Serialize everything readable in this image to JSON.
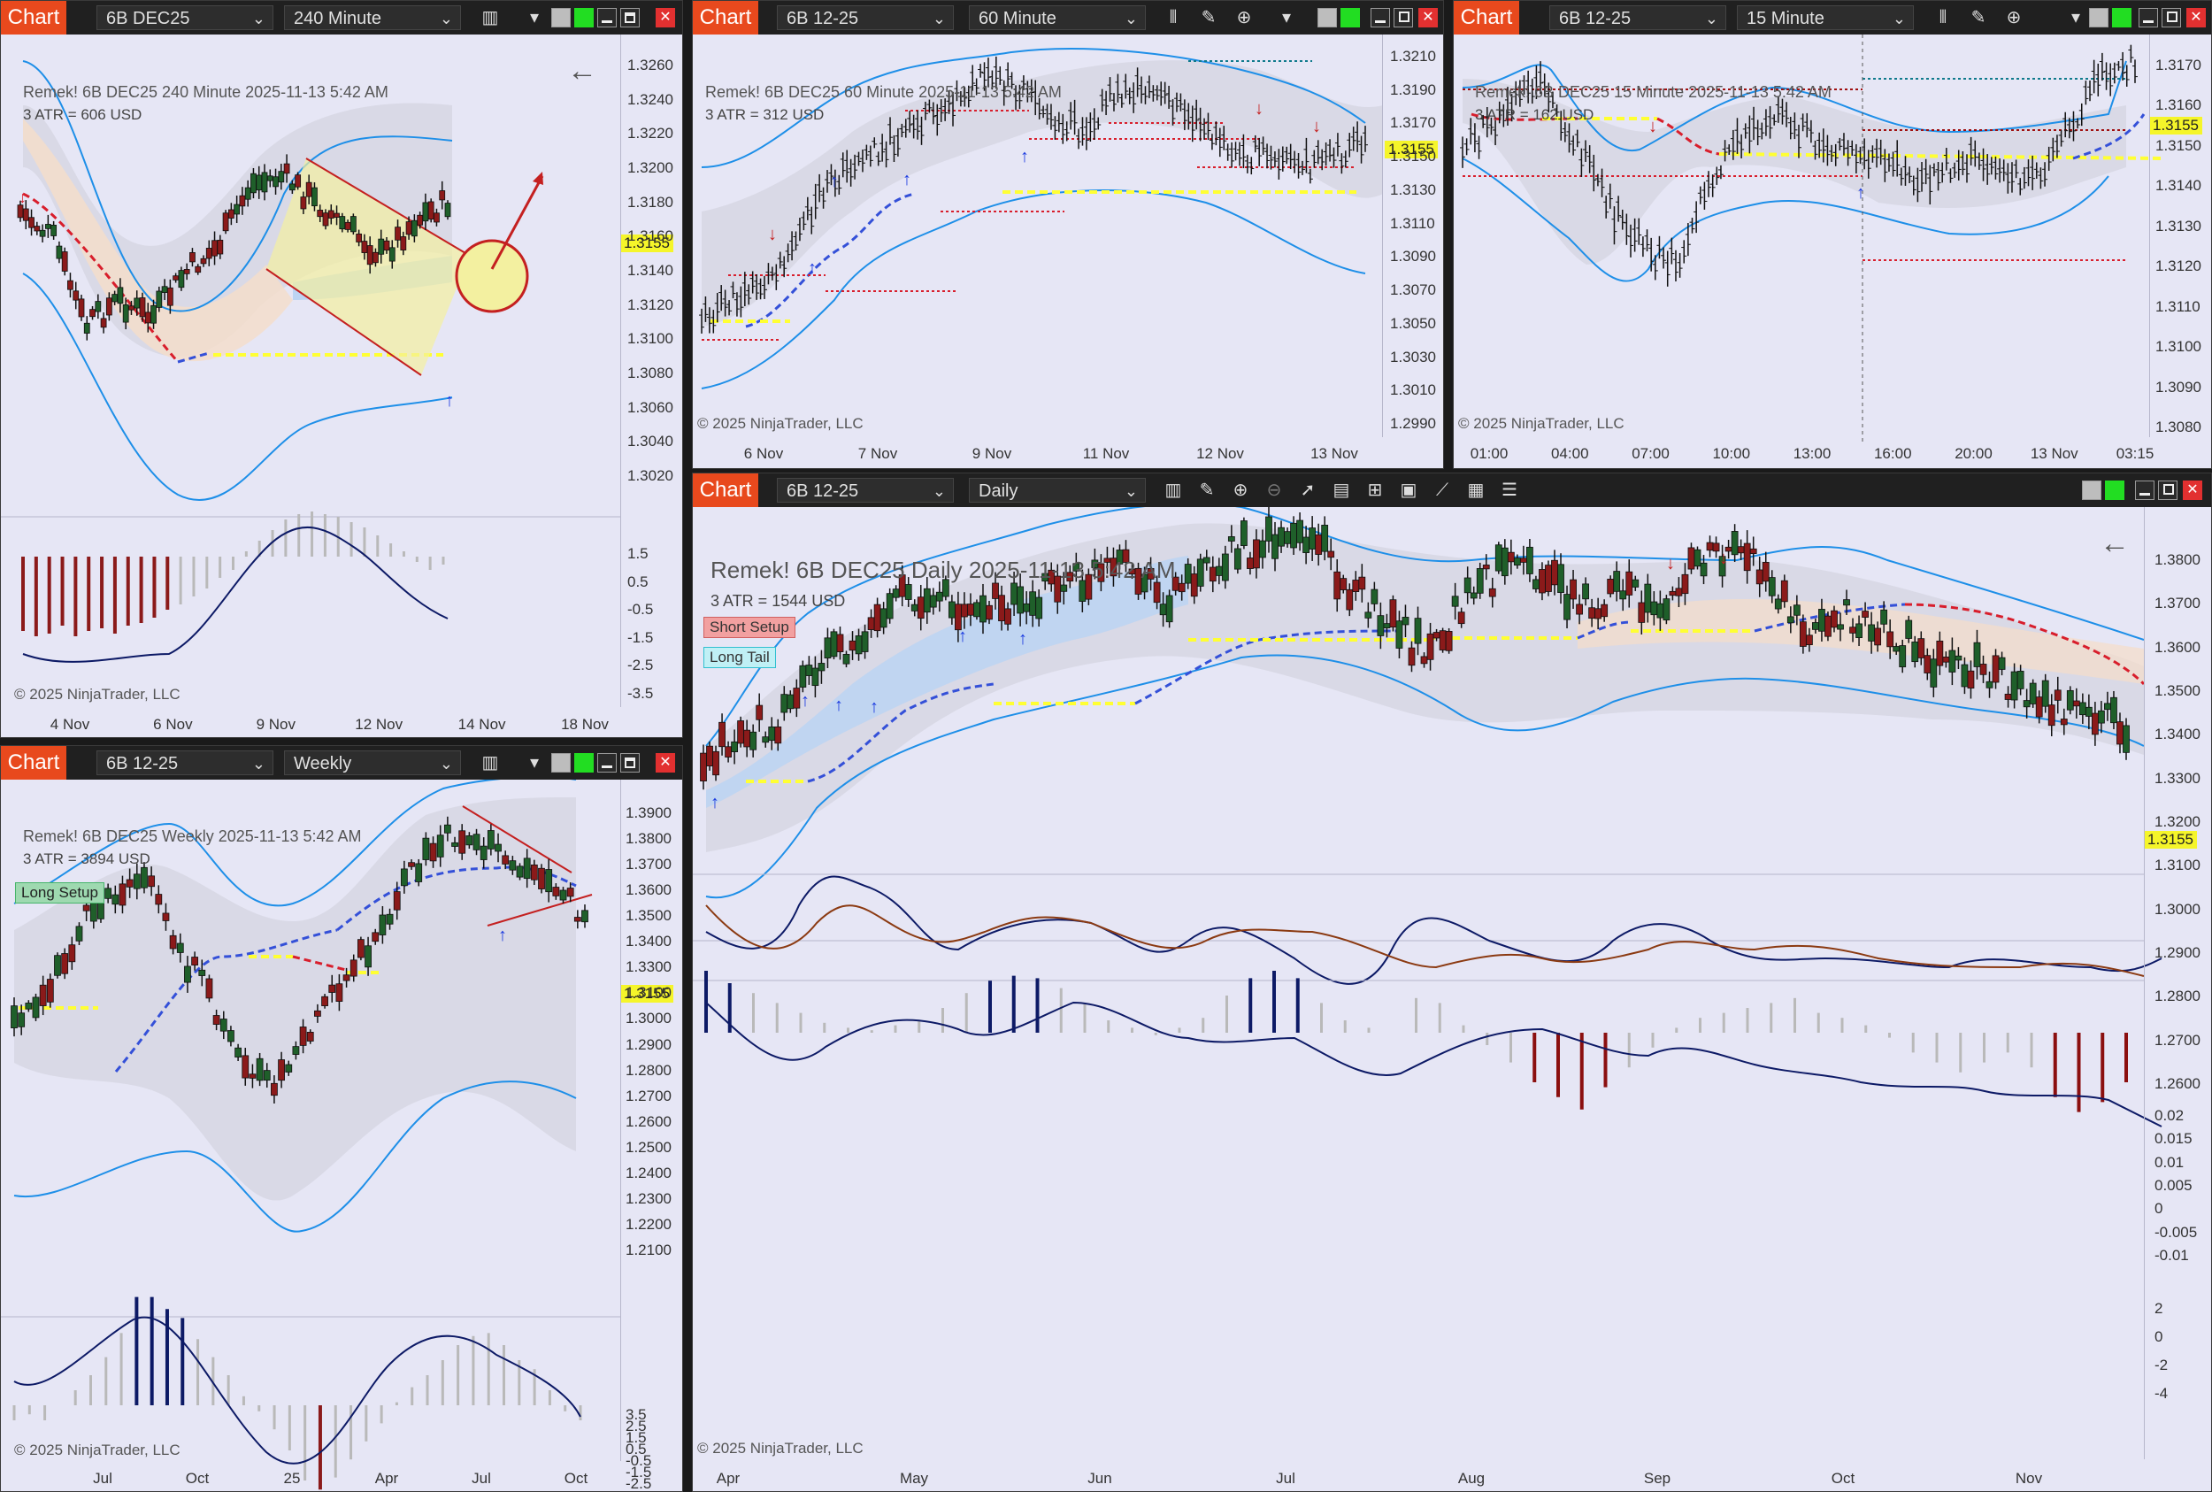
{
  "app": {
    "chart_tab": "Chart",
    "price_tag": "1.3155",
    "copyright": "© 2025 NinjaTrader, LLC"
  },
  "windows": {
    "w240": {
      "instrument": "6B DEC25",
      "interval": "240 Minute",
      "header": "Remek!  6B DEC25  240 Minute  2025-11-13 5:42 AM",
      "atr": "3 ATR = 606 USD",
      "price_labels": [
        "1.3260",
        "1.3240",
        "1.3220",
        "1.3200",
        "1.3180",
        "1.3160",
        "1.3140",
        "1.3120",
        "1.3100",
        "1.3080",
        "1.3060",
        "1.3040",
        "1.3020"
      ],
      "osc_labels": [
        "1.5",
        "0.5",
        "-0.5",
        "-1.5",
        "-2.5",
        "-3.5"
      ],
      "x_labels": [
        "4 Nov",
        "6 Nov",
        "9 Nov",
        "12 Nov",
        "14 Nov",
        "18 Nov"
      ]
    },
    "w60": {
      "instrument": "6B 12-25",
      "interval": "60 Minute",
      "header": "Remek!  6B DEC25  60 Minute  2025-11-13 5:42 AM",
      "atr": "3 ATR = 312 USD",
      "price_labels": [
        "1.3210",
        "1.3190",
        "1.3170",
        "1.3150",
        "1.3130",
        "1.3110",
        "1.3090",
        "1.3070",
        "1.3050",
        "1.3030",
        "1.3010",
        "1.2990"
      ],
      "x_labels": [
        "6 Nov",
        "7 Nov",
        "9 Nov",
        "11 Nov",
        "12 Nov",
        "13 Nov"
      ]
    },
    "w15": {
      "instrument": "6B 12-25",
      "interval": "15 Minute",
      "header": "Remek!  6B DEC25  15 Minute  2025-11-13 5:42 AM",
      "atr": "3 ATR = 162 USD",
      "price_labels": [
        "1.3170",
        "1.3160",
        "1.3150",
        "1.3140",
        "1.3130",
        "1.3120",
        "1.3110",
        "1.3100",
        "1.3090",
        "1.3080"
      ],
      "x_labels": [
        "01:00",
        "04:00",
        "07:00",
        "10:00",
        "13:00",
        "16:00",
        "20:00",
        "13 Nov",
        "03:15"
      ]
    },
    "wWeekly": {
      "instrument": "6B 12-25",
      "interval": "Weekly",
      "header": "Remek!  6B DEC25  Weekly  2025-11-13 5:42 AM",
      "atr": "3 ATR = 3894 USD",
      "tag_long_setup": "Long Setup",
      "price_labels": [
        "1.3900",
        "1.3800",
        "1.3700",
        "1.3600",
        "1.3500",
        "1.3400",
        "1.3300",
        "1.3100",
        "1.3000",
        "1.2900",
        "1.2800",
        "1.2700",
        "1.2600",
        "1.2500",
        "1.2400",
        "1.2300",
        "1.2200",
        "1.2100"
      ],
      "osc_labels": [
        "3.5",
        "2.5",
        "1.5",
        "0.5",
        "-0.5",
        "-1.5",
        "-2.5"
      ],
      "x_labels": [
        "Jul",
        "Oct",
        "25",
        "Apr",
        "Jul",
        "Oct"
      ]
    },
    "wDaily": {
      "instrument": "6B 12-25",
      "interval": "Daily",
      "header": "Remek!  6B DEC25  Daily  2025-11-13 5:42 AM",
      "atr": "3 ATR = 1544 USD",
      "tag_short_setup": "Short Setup",
      "tag_long_tail": "Long Tail",
      "price_labels": [
        "1.3800",
        "1.3700",
        "1.3600",
        "1.3500",
        "1.3400",
        "1.3300",
        "1.3200",
        "1.3100",
        "1.3000",
        "1.2900",
        "1.2800",
        "1.2700",
        "1.2600"
      ],
      "osc1_labels": [
        "0.02",
        "0.015",
        "0.01",
        "0.005",
        "0",
        "-0.005",
        "-0.01"
      ],
      "osc2_labels": [
        "2",
        "0",
        "-2",
        "-4"
      ],
      "x_labels": [
        "Apr",
        "May",
        "Jun",
        "Jul",
        "Aug",
        "Sep",
        "Oct",
        "Nov"
      ]
    }
  },
  "colors": {
    "tab": "#e8491d",
    "band": "#1e8fe8",
    "up_candle": "#1f5f2a",
    "down_candle": "#8b1a1a",
    "resist": "#d81e2c",
    "support": "#ffff33",
    "up_trend": "#3450d8",
    "osc_up": "#0d1a66",
    "osc_down": "#8b0f0f"
  }
}
